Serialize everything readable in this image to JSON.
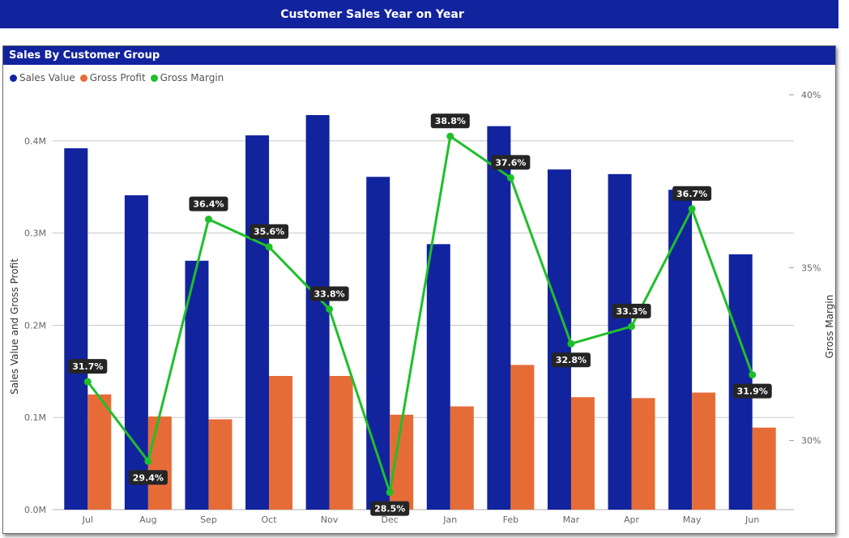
{
  "page": {
    "banner_title": "Customer Sales Year on Year"
  },
  "panel": {
    "title": "Sales By Customer Group"
  },
  "colors": {
    "banner": "#12239e",
    "sales_value": "#12239e",
    "gross_profit": "#e66c37",
    "gross_margin": "#1fbf2a",
    "data_label_bg": "#252525"
  },
  "chart_data": {
    "type": "bar",
    "title": "Sales By Customer Group",
    "categories": [
      "Jul",
      "Aug",
      "Sep",
      "Oct",
      "Nov",
      "Dec",
      "Jan",
      "Feb",
      "Mar",
      "Apr",
      "May",
      "Jun"
    ],
    "series": [
      {
        "name": "Sales Value",
        "axis": "left",
        "type": "bar",
        "values": [
          0.392,
          0.341,
          0.27,
          0.406,
          0.428,
          0.361,
          0.288,
          0.416,
          0.369,
          0.364,
          0.347,
          0.277
        ]
      },
      {
        "name": "Gross Profit",
        "axis": "left",
        "type": "bar",
        "values": [
          0.125,
          0.101,
          0.098,
          0.145,
          0.145,
          0.103,
          0.112,
          0.157,
          0.122,
          0.121,
          0.127,
          0.089
        ]
      },
      {
        "name": "Gross Margin",
        "axis": "right",
        "type": "line",
        "values": [
          31.7,
          29.4,
          36.4,
          35.6,
          33.8,
          28.5,
          38.8,
          37.6,
          32.8,
          33.3,
          36.7,
          31.9
        ],
        "labels": [
          "31.7%",
          "29.4%",
          "36.4%",
          "35.6%",
          "33.8%",
          "28.5%",
          "38.8%",
          "37.6%",
          "32.8%",
          "33.3%",
          "36.7%",
          "31.9%"
        ],
        "label_side": [
          "above",
          "below",
          "above",
          "above",
          "above",
          "below",
          "above",
          "above",
          "below",
          "above",
          "above",
          "below"
        ]
      }
    ],
    "ylabel": "Sales Value and Gross Profit",
    "ylim": [
      0,
      0.45
    ],
    "yticks": [
      0,
      0.1,
      0.2,
      0.3,
      0.4
    ],
    "ytick_labels": [
      "0.0M",
      "0.1M",
      "0.2M",
      "0.3M",
      "0.4M"
    ],
    "y2label": "Gross Margin",
    "y2lim": [
      28,
      40
    ],
    "y2ticks": [
      30,
      35,
      40
    ],
    "y2tick_labels": [
      "30%",
      "35%",
      "40%"
    ],
    "grid": true,
    "legend": "top-left"
  }
}
